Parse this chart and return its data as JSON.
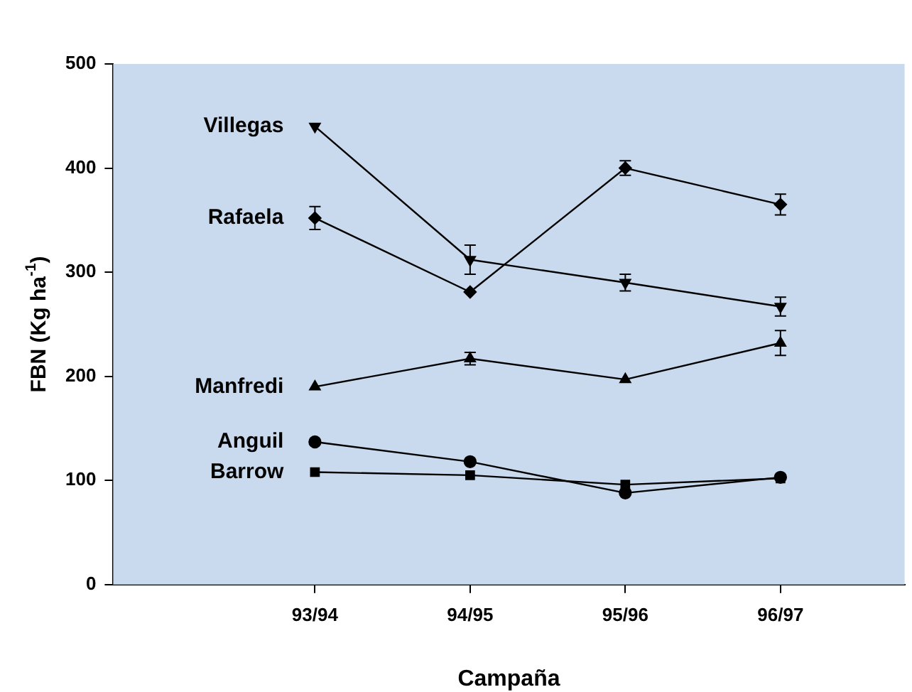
{
  "chart_data": {
    "type": "line",
    "xlabel": "Campaña",
    "ylabel": "FBN (Kg ha$^{-1}$)",
    "categories": [
      "93/94",
      "94/95",
      "95/96",
      "96/97"
    ],
    "ylim": [
      0,
      500
    ],
    "yticks": [
      0,
      100,
      200,
      300,
      400,
      500
    ],
    "grid": false,
    "legend": false,
    "series": [
      {
        "name": "Villegas",
        "color": "#000000",
        "marker": "triangle-down",
        "values": [
          440,
          312,
          290,
          267
        ],
        "errors": [
          null,
          14,
          8,
          9
        ]
      },
      {
        "name": "Rafaela",
        "color": "#000000",
        "marker": "diamond",
        "values": [
          352,
          281,
          400,
          365
        ],
        "errors": [
          11,
          null,
          7,
          10
        ]
      },
      {
        "name": "Manfredi",
        "color": "#000000",
        "marker": "triangle",
        "values": [
          190,
          217,
          197,
          232
        ],
        "errors": [
          null,
          6,
          null,
          12
        ]
      },
      {
        "name": "Anguil",
        "color": "#000000",
        "marker": "circle",
        "values": [
          137,
          118,
          88,
          103
        ]
      },
      {
        "name": "Barrow",
        "color": "#000000",
        "marker": "square",
        "values": [
          108,
          105,
          96,
          102
        ]
      }
    ]
  }
}
